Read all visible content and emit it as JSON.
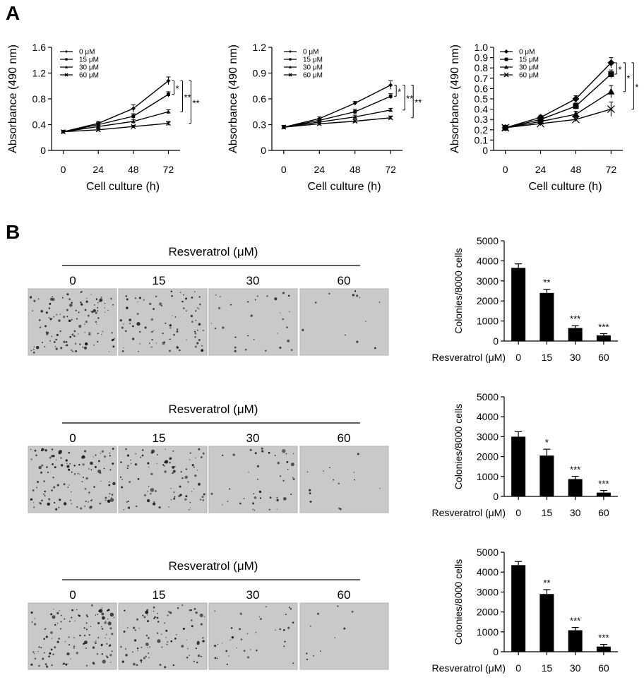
{
  "figure": {
    "panel_a_label": "A",
    "panel_b_label": "B"
  },
  "chart_data": [
    {
      "type": "line",
      "panel": "A",
      "xlabel": "Cell culture (h)",
      "ylabel": "Absorbance (490 nm)",
      "x": [
        0,
        24,
        48,
        72
      ],
      "xlim": [
        -8,
        80
      ],
      "ylim": [
        0,
        1.6
      ],
      "yticks": [
        0,
        0.4,
        0.8,
        1.2,
        1.6
      ],
      "yticklabels": [
        "0",
        "0.4",
        "0.8",
        "1.2",
        "1.6"
      ],
      "legend_position": "top-left",
      "series": [
        {
          "name": "0 μM",
          "marker": "diamond",
          "values": [
            0.29,
            0.42,
            0.65,
            1.08
          ],
          "err": [
            0.02,
            0.03,
            0.06,
            0.06
          ]
        },
        {
          "name": "15 μM",
          "marker": "square",
          "values": [
            0.29,
            0.4,
            0.53,
            0.87
          ],
          "err": [
            0.02,
            0.03,
            0.04,
            0.04
          ]
        },
        {
          "name": "30 μM",
          "marker": "triangle",
          "values": [
            0.29,
            0.37,
            0.45,
            0.6
          ],
          "err": [
            0.02,
            0.02,
            0.03,
            0.03
          ]
        },
        {
          "name": "60 μM",
          "marker": "cross",
          "values": [
            0.29,
            0.32,
            0.37,
            0.42
          ],
          "err": [
            0.02,
            0.02,
            0.02,
            0.03
          ]
        }
      ],
      "significance": [
        "*",
        "**",
        "**"
      ]
    },
    {
      "type": "line",
      "panel": "A",
      "xlabel": "Cell culture (h)",
      "ylabel": "Absorbance (490 nm)",
      "x": [
        0,
        24,
        48,
        72
      ],
      "xlim": [
        -8,
        80
      ],
      "ylim": [
        0,
        1.2
      ],
      "yticks": [
        0,
        0.3,
        0.6,
        0.9,
        1.2
      ],
      "yticklabels": [
        "0",
        "0.3",
        "0.6",
        "0.9",
        "1.2"
      ],
      "legend_position": "top-left",
      "series": [
        {
          "name": "0 μM",
          "marker": "diamond",
          "values": [
            0.27,
            0.37,
            0.55,
            0.76
          ],
          "err": [
            0.02,
            0.02,
            0.02,
            0.05
          ]
        },
        {
          "name": "15 μM",
          "marker": "square",
          "values": [
            0.27,
            0.35,
            0.45,
            0.63
          ],
          "err": [
            0.02,
            0.02,
            0.03,
            0.03
          ]
        },
        {
          "name": "30 μM",
          "marker": "triangle",
          "values": [
            0.27,
            0.33,
            0.39,
            0.47
          ],
          "err": [
            0.02,
            0.02,
            0.02,
            0.02
          ]
        },
        {
          "name": "60 μM",
          "marker": "cross",
          "values": [
            0.27,
            0.31,
            0.34,
            0.38
          ],
          "err": [
            0.02,
            0.02,
            0.02,
            0.02
          ]
        }
      ],
      "significance": [
        "*",
        "**",
        "**"
      ]
    },
    {
      "type": "line",
      "panel": "A",
      "xlabel": "Cell culture (h)",
      "ylabel": "Absorbance (490 nm)",
      "x": [
        0,
        24,
        48,
        72
      ],
      "xlim": [
        -8,
        80
      ],
      "ylim": [
        0,
        1.0
      ],
      "yticks": [
        0,
        0.1,
        0.2,
        0.3,
        0.4,
        0.5,
        0.6,
        0.7,
        0.8,
        0.9,
        1.0
      ],
      "yticklabels": [
        "0",
        "0.1",
        "0.2",
        "0.3",
        "0.4",
        "0.5",
        "0.6",
        "0.7",
        "0.8",
        "0.9",
        "1.0"
      ],
      "legend_position": "top-left",
      "series": [
        {
          "name": "0 μM",
          "marker": "diamond",
          "values": [
            0.22,
            0.32,
            0.5,
            0.85
          ],
          "err": [
            0.02,
            0.02,
            0.03,
            0.05
          ]
        },
        {
          "name": "15 μM",
          "marker": "square",
          "values": [
            0.22,
            0.3,
            0.43,
            0.74
          ],
          "err": [
            0.02,
            0.02,
            0.03,
            0.04
          ]
        },
        {
          "name": "30 μM",
          "marker": "triangle",
          "values": [
            0.22,
            0.28,
            0.35,
            0.57
          ],
          "err": [
            0.02,
            0.02,
            0.03,
            0.06
          ]
        },
        {
          "name": "60 μM",
          "marker": "cross",
          "values": [
            0.22,
            0.26,
            0.3,
            0.4
          ],
          "err": [
            0.02,
            0.02,
            0.02,
            0.07
          ]
        }
      ],
      "significance": [
        "*",
        "*",
        "*"
      ]
    },
    {
      "type": "bar",
      "panel": "B",
      "xlabel": "Resveratrol (μM)",
      "ylabel": "Colonies/8000 cells",
      "categories": [
        "0",
        "15",
        "30",
        "60"
      ],
      "values": [
        3650,
        2400,
        650,
        280
      ],
      "err": [
        200,
        180,
        120,
        90
      ],
      "ylim": [
        0,
        5000
      ],
      "yticks": [
        0,
        1000,
        2000,
        3000,
        4000,
        5000
      ],
      "significance": [
        "",
        "**",
        "***",
        "***"
      ]
    },
    {
      "type": "bar",
      "panel": "B",
      "xlabel": "Resveratrol (μM)",
      "ylabel": "Colonies/8000 cells",
      "categories": [
        "0",
        "15",
        "30",
        "60"
      ],
      "values": [
        3000,
        2050,
        870,
        190
      ],
      "err": [
        250,
        320,
        140,
        110
      ],
      "ylim": [
        0,
        5000
      ],
      "yticks": [
        0,
        1000,
        2000,
        3000,
        4000,
        5000
      ],
      "significance": [
        "",
        "*",
        "***",
        "***"
      ]
    },
    {
      "type": "bar",
      "panel": "B",
      "xlabel": "Resveratrol (μM)",
      "ylabel": "Colonies/8000 cells",
      "categories": [
        "0",
        "15",
        "30",
        "60"
      ],
      "values": [
        4350,
        2900,
        1080,
        260
      ],
      "err": [
        180,
        220,
        140,
        110
      ],
      "ylim": [
        0,
        5000
      ],
      "yticks": [
        0,
        1000,
        2000,
        3000,
        4000,
        5000
      ],
      "significance": [
        "",
        "**",
        "***",
        "***"
      ]
    }
  ],
  "colony_images": [
    {
      "header": "Resveratrol (μM)",
      "doses": [
        "0",
        "15",
        "30",
        "60"
      ],
      "colony_density": [
        1.0,
        0.7,
        0.25,
        0.1
      ]
    },
    {
      "header": "Resveratrol (μM)",
      "doses": [
        "0",
        "15",
        "30",
        "60"
      ],
      "colony_density": [
        1.0,
        0.75,
        0.35,
        0.12
      ]
    },
    {
      "header": "Resveratrol (μM)",
      "doses": [
        "0",
        "15",
        "30",
        "60"
      ],
      "colony_density": [
        1.0,
        0.75,
        0.3,
        0.08
      ]
    }
  ],
  "colors": {
    "ink": "#000000",
    "plate_background": "#c9c9c9",
    "plate_border": "#b3b3b3",
    "colony": "#1a1a1a"
  }
}
